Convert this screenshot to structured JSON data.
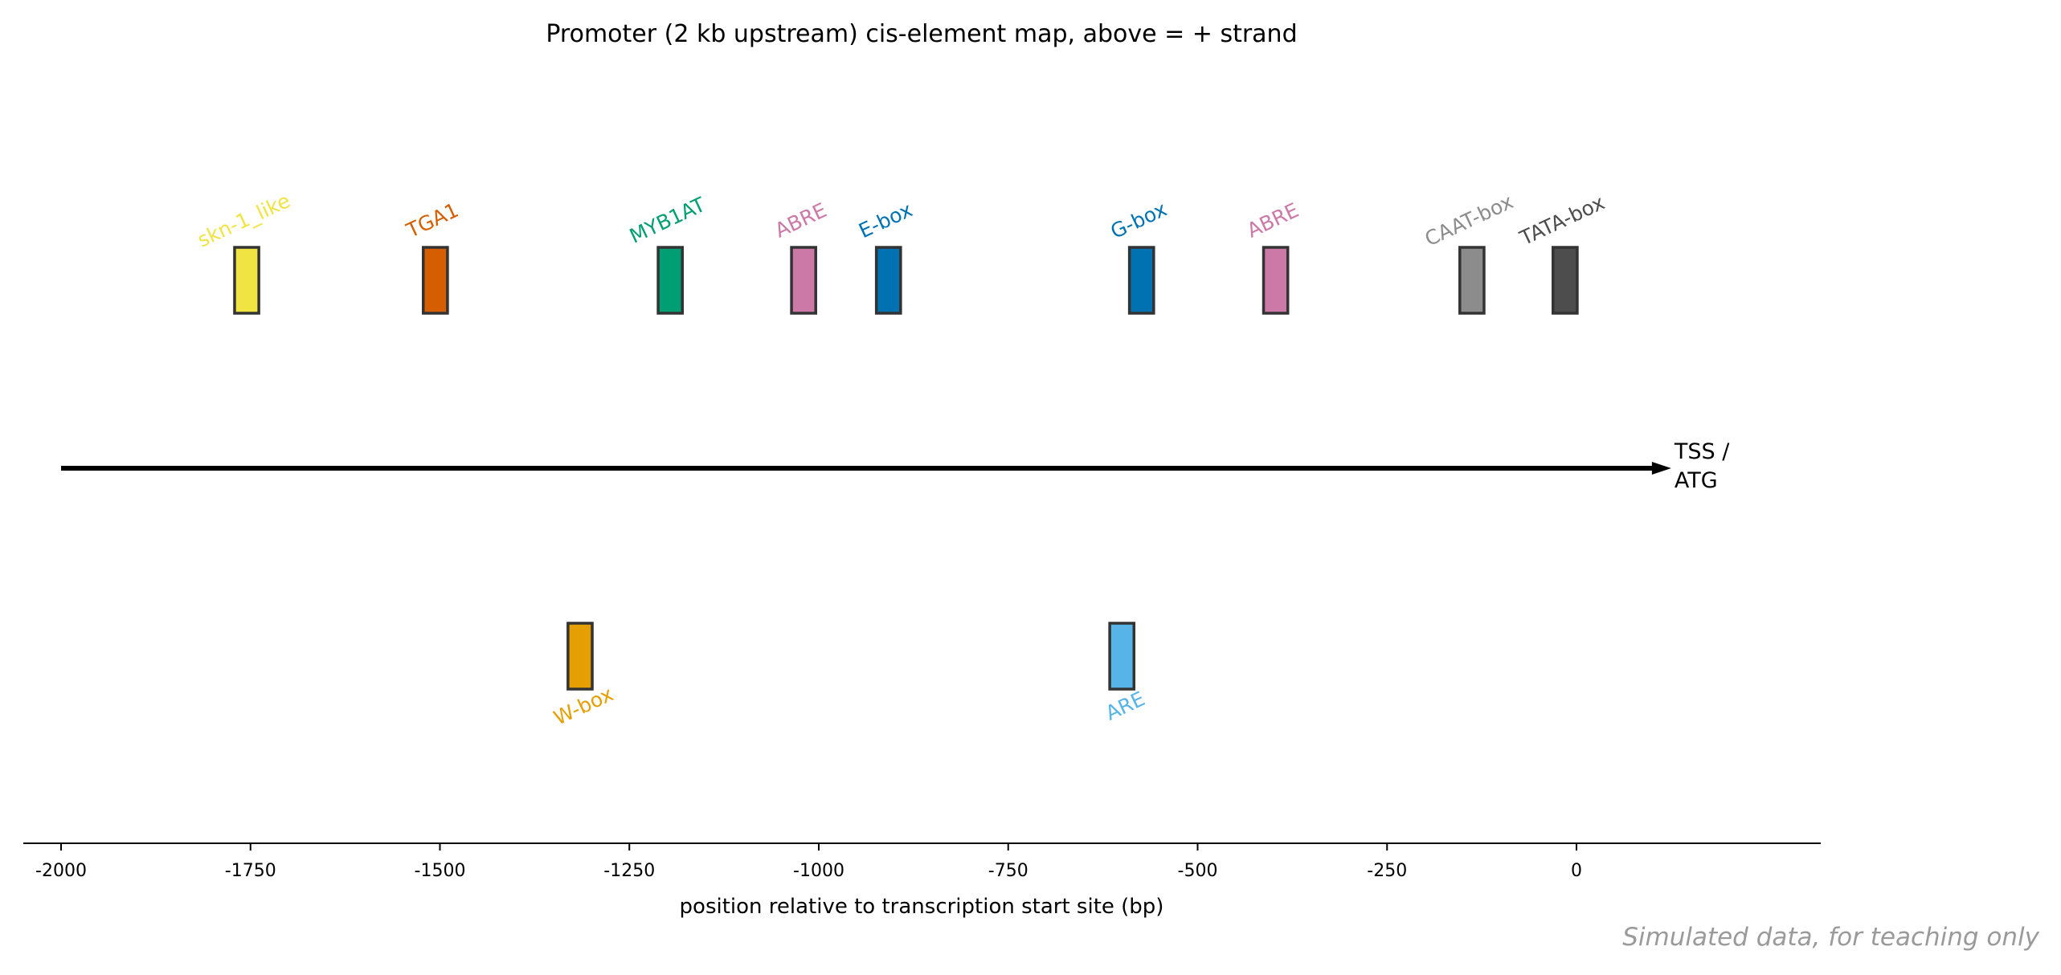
{
  "chart_data": {
    "type": "scatter",
    "title": "Promoter (2 kb upstream) cis-element map, above = + strand",
    "xlabel": "position relative to transcription start site (bp)",
    "ylabel": "",
    "xlim": [
      -2050,
      325
    ],
    "xticks": [
      -2000,
      -1750,
      -1500,
      -1250,
      -1000,
      -750,
      -500,
      -250,
      0
    ],
    "xtick_labels": [
      "-2000",
      "-1750",
      "-1500",
      "-1250",
      "-1000",
      "-750",
      "-500",
      "-250",
      "0"
    ],
    "axis_start": -2000,
    "axis_end": 125,
    "axis_end_label": [
      "TSS /",
      "ATG"
    ],
    "strands": {
      "above": "+",
      "below": "-"
    },
    "element_width_bp": 32,
    "elements": [
      {
        "name": "skn-1_like",
        "center": -1755,
        "strand": "+",
        "color": "#f0e442"
      },
      {
        "name": "TGA1",
        "center": -1506,
        "strand": "+",
        "color": "#d55e00"
      },
      {
        "name": "MYB1AT",
        "center": -1196,
        "strand": "+",
        "color": "#009e73"
      },
      {
        "name": "ABRE",
        "center": -1020,
        "strand": "+",
        "color": "#cc79a7"
      },
      {
        "name": "E-box",
        "center": -908,
        "strand": "+",
        "color": "#0072b2"
      },
      {
        "name": "G-box",
        "center": -574,
        "strand": "+",
        "color": "#0072b2"
      },
      {
        "name": "ABRE",
        "center": -397,
        "strand": "+",
        "color": "#cc79a7"
      },
      {
        "name": "CAAT-box",
        "center": -138,
        "strand": "+",
        "color": "#8c8c8c"
      },
      {
        "name": "TATA-box",
        "center": -15,
        "strand": "+",
        "color": "#4d4d4d"
      },
      {
        "name": "W-box",
        "center": -1315,
        "strand": "-",
        "color": "#e69f00"
      },
      {
        "name": "ARE",
        "center": -600,
        "strand": "-",
        "color": "#56b4e9"
      }
    ]
  },
  "watermark": "Simulated data, for teaching only"
}
